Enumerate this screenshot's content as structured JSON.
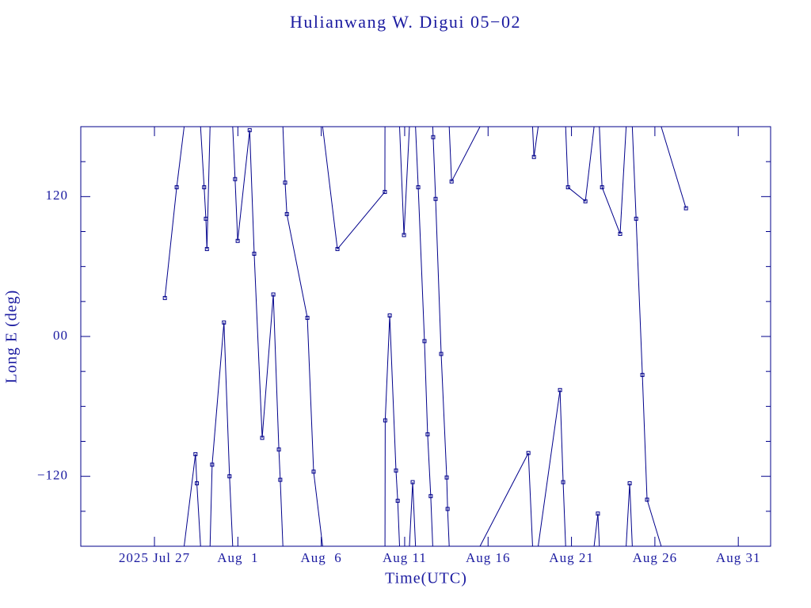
{
  "chart_data": {
    "type": "line",
    "title": "Hulianwang W. Digui 05−02",
    "x_label": "Time(UTC)",
    "y_label": "Long E (deg)",
    "color": "#00008b",
    "xlim": [
      "2025-07-22T14:00",
      "2025-09-01T22:30"
    ],
    "xticks": [
      {
        "value": "2025-07-27T00:00",
        "label": "2025 Jul 27"
      },
      {
        "value": "2025-08-01T00:00",
        "label": "Aug  1"
      },
      {
        "value": "2025-08-06T00:00",
        "label": "Aug  6"
      },
      {
        "value": "2025-08-11T00:00",
        "label": "Aug 11"
      },
      {
        "value": "2025-08-16T00:00",
        "label": "Aug 16"
      },
      {
        "value": "2025-08-21T00:00",
        "label": "Aug 21"
      },
      {
        "value": "2025-08-26T00:00",
        "label": "Aug 26"
      },
      {
        "value": "2025-08-31T00:00",
        "label": "Aug 31"
      }
    ],
    "ylim": [
      -180,
      180
    ],
    "yticks": [
      {
        "value": -120,
        "label": "−120"
      },
      {
        "value": 0,
        "label": "00"
      },
      120
    ],
    "yminor": [
      -150,
      -90,
      -60,
      -30,
      30,
      60,
      90,
      150
    ],
    "x": [
      "2025-07-27T15:00",
      "2025-07-28T08:00",
      "2025-07-29T11:00",
      "2025-07-29T13:00",
      "2025-07-29T23:30",
      "2025-07-30T02:00",
      "2025-07-30T03:30",
      "2025-07-30T11:00",
      "2025-07-31T04:00",
      "2025-07-31T12:00",
      "2025-07-31T20:00",
      "2025-07-31T23:45",
      "2025-08-01T17:00",
      "2025-08-01T23:30",
      "2025-08-02T11:00",
      "2025-08-03T03:00",
      "2025-08-03T11:00",
      "2025-08-03T13:00",
      "2025-08-03T20:00",
      "2025-08-03T22:30",
      "2025-08-05T04:00",
      "2025-08-05T13:00",
      "2025-08-06T23:15",
      "2025-08-09T19:30",
      "2025-08-09T20:00",
      "2025-08-10T02:30",
      "2025-08-10T11:30",
      "2025-08-10T14:00",
      "2025-08-10T23:00",
      "2025-08-11T11:30",
      "2025-08-11T19:30",
      "2025-08-12T04:30",
      "2025-08-12T09:00",
      "2025-08-12T13:30",
      "2025-08-12T17:00",
      "2025-08-12T20:30",
      "2025-08-13T04:30",
      "2025-08-13T12:30",
      "2025-08-13T13:45",
      "2025-08-13T19:30",
      "2025-08-18T10:00",
      "2025-08-18T18:00",
      "2025-08-20T07:30",
      "2025-08-20T12:00",
      "2025-08-20T19:00",
      "2025-08-21T20:00",
      "2025-08-22T14:00",
      "2025-08-22T20:00",
      "2025-08-23T22:00",
      "2025-08-24T11:45",
      "2025-08-24T21:00",
      "2025-08-25T06:00",
      "2025-08-25T12:45",
      "2025-08-27T20:45"
    ],
    "values": [
      33,
      128,
      -101,
      -126,
      128,
      101,
      75,
      -110,
      12,
      -120,
      135,
      82,
      177,
      71,
      -87,
      36,
      -97,
      -123,
      132,
      105,
      16,
      -116,
      75,
      124,
      -72,
      18,
      -115,
      -141,
      87,
      -125,
      128,
      -4,
      -84,
      -137,
      171,
      118,
      -15,
      -121,
      -148,
      133,
      -100,
      154,
      -46,
      -125,
      128,
      116,
      -152,
      128,
      88,
      -126,
      101,
      -33,
      -140,
      110
    ]
  }
}
